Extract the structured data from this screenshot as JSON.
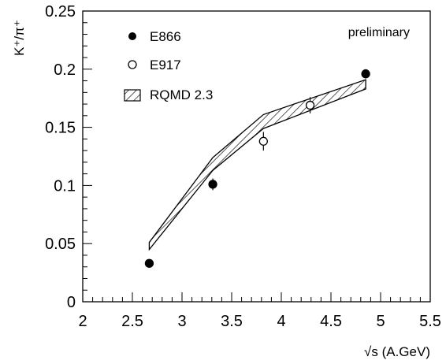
{
  "chart_data": {
    "type": "scatter",
    "xlabel": "√s (A.GeV)",
    "ylabel": "K⁺/π⁺",
    "xlim": [
      2,
      5.5
    ],
    "ylim": [
      0,
      0.25
    ],
    "x_ticks": [
      "2",
      "2.5",
      "3",
      "3.5",
      "4",
      "4.5",
      "5",
      "5.5"
    ],
    "y_ticks": [
      "0",
      "0.05",
      "0.1",
      "0.15",
      "0.2",
      "0.25"
    ],
    "annotation": "preliminary",
    "legend_position": "top-left",
    "grid": false,
    "series": [
      {
        "name": "E866",
        "marker": "filled-circle",
        "points": [
          {
            "x": 2.67,
            "y": 0.033,
            "err": 0.002
          },
          {
            "x": 3.31,
            "y": 0.101,
            "err": 0.005
          },
          {
            "x": 4.85,
            "y": 0.196,
            "err": 0.004
          }
        ]
      },
      {
        "name": "E917",
        "marker": "open-circle",
        "points": [
          {
            "x": 3.82,
            "y": 0.138,
            "err": 0.008
          },
          {
            "x": 4.29,
            "y": 0.169,
            "err": 0.007
          }
        ]
      },
      {
        "name": "RQMD 2.3",
        "style": "hatched-band",
        "band": [
          {
            "x": 2.67,
            "low": 0.045,
            "high": 0.051
          },
          {
            "x": 3.31,
            "low": 0.113,
            "high": 0.124
          },
          {
            "x": 3.82,
            "low": 0.149,
            "high": 0.161
          },
          {
            "x": 4.85,
            "low": 0.183,
            "high": 0.191
          }
        ]
      }
    ]
  }
}
